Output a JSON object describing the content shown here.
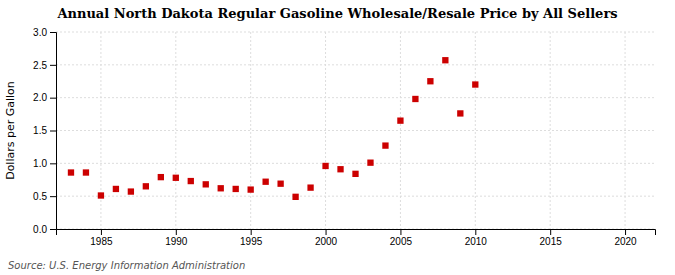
{
  "chart_data": {
    "type": "scatter",
    "title": "Annual North Dakota Regular Gasoline Wholesale/Resale Price by All Sellers",
    "ylabel": "Dollars per Gallon",
    "source": "Source: U.S. Energy Information Administration",
    "x": [
      1983,
      1984,
      1985,
      1986,
      1987,
      1988,
      1989,
      1990,
      1991,
      1992,
      1993,
      1994,
      1995,
      1996,
      1997,
      1998,
      1999,
      2000,
      2001,
      2002,
      2003,
      2004,
      2005,
      2006,
      2007,
      2008,
      2009,
      2010
    ],
    "values": [
      0.86,
      0.86,
      0.51,
      0.61,
      0.57,
      0.65,
      0.79,
      0.78,
      0.73,
      0.68,
      0.62,
      0.61,
      0.6,
      0.72,
      0.69,
      0.49,
      0.63,
      0.96,
      0.91,
      0.84,
      1.01,
      1.27,
      1.65,
      1.98,
      2.25,
      2.57,
      1.76,
      2.2
    ],
    "color": "#cc0000",
    "marker": "square",
    "xlim": [
      1982,
      2022
    ],
    "ylim": [
      0,
      3.0
    ],
    "xticks": [
      1985,
      1990,
      1995,
      2000,
      2005,
      2010,
      2015,
      2020
    ],
    "yticks": [
      {
        "value": 0,
        "label": "0.0"
      },
      0.5,
      {
        "value": 1.0,
        "label": "1.0"
      },
      1.5,
      {
        "value": 2.0,
        "label": "2.0"
      },
      2.5,
      {
        "value": 3.0,
        "label": "3.0"
      }
    ],
    "grid": true
  }
}
